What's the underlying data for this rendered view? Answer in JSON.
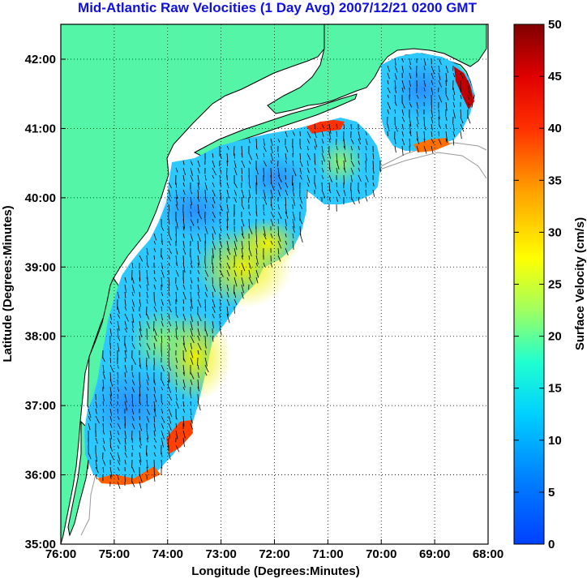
{
  "title": "Mid-Atlantic Raw Velocities (1 Day Avg) 2007/12/21 0200 GMT",
  "x_axis": {
    "label": "Longitude (Degrees:Minutes)",
    "ticks": [
      "76:00",
      "75:00",
      "74:00",
      "73:00",
      "72:00",
      "71:00",
      "70:00",
      "69:00",
      "68:00"
    ]
  },
  "y_axis": {
    "label": "Latitude (Degrees:Minutes)",
    "ticks": [
      "42:00",
      "41:00",
      "40:00",
      "39:00",
      "38:00",
      "37:00",
      "36:00",
      "35:00"
    ]
  },
  "colorbar": {
    "label": "Surface Velocity (cm/s)",
    "ticks": [
      "50",
      "45",
      "40",
      "35",
      "30",
      "25",
      "20",
      "15",
      "10",
      "5",
      "0"
    ],
    "min": 0,
    "max": 50,
    "colormap": "jet"
  },
  "colors": {
    "title": "#1010e0",
    "land": "#55f5a8",
    "ocean": "#ffffff",
    "grid": "#000000",
    "bathymetry": "#999999"
  }
}
